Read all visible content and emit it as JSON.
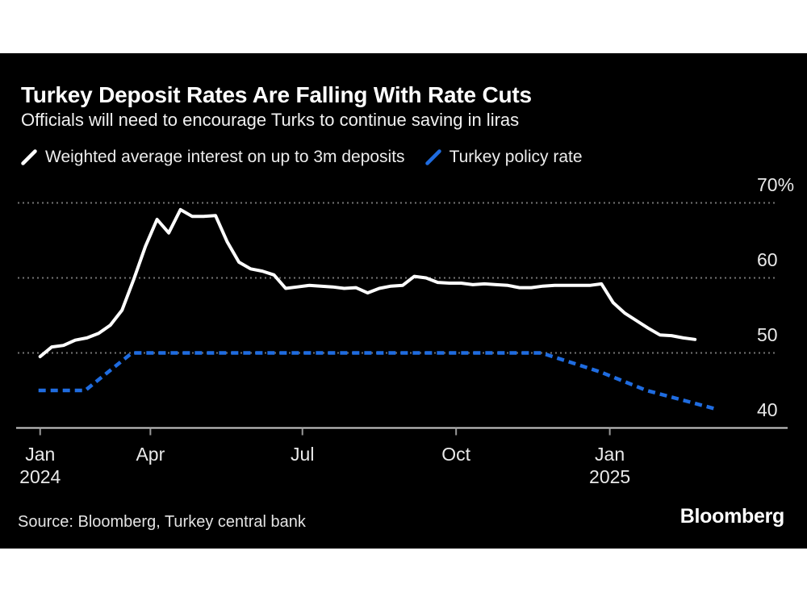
{
  "header": {
    "title": "Turkey Deposit Rates Are Falling With Rate Cuts",
    "subtitle": "Officials will need to encourage Turks to continue saving in liras"
  },
  "legend": {
    "items": [
      {
        "label": "Weighted average interest on up to 3m deposits",
        "color": "#ffffff"
      },
      {
        "label": "Turkey policy rate",
        "color": "#1f6ce0"
      }
    ]
  },
  "footer": {
    "source": "Source: Bloomberg, Turkey central bank",
    "logo_text": "Bloomberg"
  },
  "colors": {
    "card_background": "#000000",
    "page_margin": "#ffffff",
    "deposit_line": "#ffffff",
    "policy_line": "#1f6ce0",
    "grid": "#747474",
    "axis": "#cccccc",
    "tick_mark": "#999999",
    "tick_label": "#e9e9e9"
  },
  "chart_data": {
    "type": "line",
    "title": "Turkey Deposit Rates Are Falling With Rate Cuts",
    "subtitle": "Officials will need to encourage Turks to continue saving in liras",
    "unit": "%",
    "grid": "horizontal-dotted",
    "legend_position": "top",
    "x_axis": {
      "range": [
        "2024-01-25",
        "2025-03-06"
      ],
      "ticks": [
        {
          "date": "2024-01-26",
          "label": "Jan",
          "sublabel": "2024"
        },
        {
          "date": "2024-04-01",
          "label": "Apr"
        },
        {
          "date": "2024-07-01",
          "label": "Jul"
        },
        {
          "date": "2024-10-01",
          "label": "Oct"
        },
        {
          "date": "2025-01-01",
          "label": "Jan",
          "sublabel": "2025"
        }
      ]
    },
    "y_axis": {
      "range": [
        40,
        71.5
      ],
      "ticks": [
        {
          "value": 70,
          "label": "70%"
        },
        {
          "value": 60,
          "label": "60"
        },
        {
          "value": 50,
          "label": "50"
        },
        {
          "value": 40,
          "label": "40",
          "axis": true
        }
      ]
    },
    "series": [
      {
        "name": "Weighted average interest on up to 3m deposits",
        "color": "#ffffff",
        "style": "solid",
        "points": [
          [
            "2024-01-26",
            49.5
          ],
          [
            "2024-02-02",
            50.8
          ],
          [
            "2024-02-09",
            51.0
          ],
          [
            "2024-02-16",
            51.7
          ],
          [
            "2024-02-23",
            52.0
          ],
          [
            "2024-03-01",
            52.6
          ],
          [
            "2024-03-08",
            53.7
          ],
          [
            "2024-03-15",
            55.7
          ],
          [
            "2024-03-22",
            59.8
          ],
          [
            "2024-03-29",
            64.2
          ],
          [
            "2024-04-05",
            67.8
          ],
          [
            "2024-04-12",
            66.0
          ],
          [
            "2024-04-19",
            69.1
          ],
          [
            "2024-04-26",
            68.2
          ],
          [
            "2024-05-03",
            68.2
          ],
          [
            "2024-05-10",
            68.3
          ],
          [
            "2024-05-17",
            64.8
          ],
          [
            "2024-05-24",
            62.1
          ],
          [
            "2024-05-31",
            61.2
          ],
          [
            "2024-06-07",
            60.9
          ],
          [
            "2024-06-14",
            60.4
          ],
          [
            "2024-06-21",
            58.6
          ],
          [
            "2024-06-28",
            58.8
          ],
          [
            "2024-07-05",
            59.0
          ],
          [
            "2024-07-12",
            58.9
          ],
          [
            "2024-07-19",
            58.8
          ],
          [
            "2024-07-26",
            58.6
          ],
          [
            "2024-08-02",
            58.7
          ],
          [
            "2024-08-09",
            58.0
          ],
          [
            "2024-08-16",
            58.6
          ],
          [
            "2024-08-23",
            58.9
          ],
          [
            "2024-08-30",
            59.0
          ],
          [
            "2024-09-06",
            60.2
          ],
          [
            "2024-09-13",
            60.0
          ],
          [
            "2024-09-20",
            59.4
          ],
          [
            "2024-09-27",
            59.3
          ],
          [
            "2024-10-04",
            59.3
          ],
          [
            "2024-10-11",
            59.1
          ],
          [
            "2024-10-18",
            59.2
          ],
          [
            "2024-10-25",
            59.1
          ],
          [
            "2024-11-01",
            59.0
          ],
          [
            "2024-11-08",
            58.7
          ],
          [
            "2024-11-15",
            58.7
          ],
          [
            "2024-11-22",
            58.9
          ],
          [
            "2024-11-29",
            59.0
          ],
          [
            "2024-12-06",
            59.0
          ],
          [
            "2024-12-13",
            59.0
          ],
          [
            "2024-12-20",
            59.0
          ],
          [
            "2024-12-27",
            59.2
          ],
          [
            "2025-01-03",
            56.7
          ],
          [
            "2025-01-10",
            55.3
          ],
          [
            "2025-01-17",
            54.3
          ],
          [
            "2025-01-24",
            53.3
          ],
          [
            "2025-01-31",
            52.4
          ],
          [
            "2025-02-07",
            52.3
          ],
          [
            "2025-02-14",
            52.0
          ],
          [
            "2025-02-21",
            51.8
          ]
        ]
      },
      {
        "name": "Turkey policy rate",
        "color": "#1f6ce0",
        "style": "dashed",
        "points": [
          [
            "2024-01-25",
            45
          ],
          [
            "2024-02-22",
            45
          ],
          [
            "2024-03-21",
            50
          ],
          [
            "2024-11-21",
            50
          ],
          [
            "2024-12-26",
            47.5
          ],
          [
            "2025-01-23",
            45
          ],
          [
            "2025-03-06",
            42.5
          ]
        ]
      }
    ]
  }
}
